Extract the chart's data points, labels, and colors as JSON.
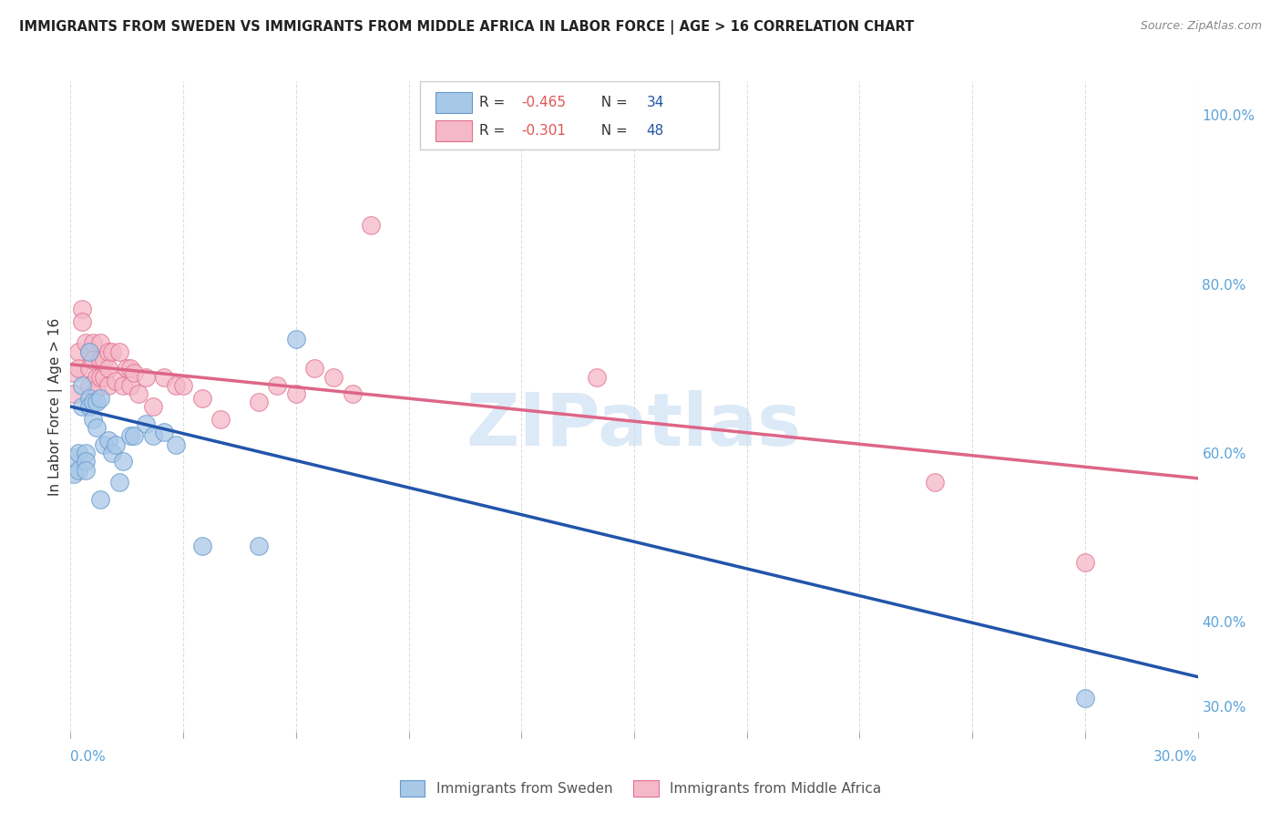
{
  "title": "IMMIGRANTS FROM SWEDEN VS IMMIGRANTS FROM MIDDLE AFRICA IN LABOR FORCE | AGE > 16 CORRELATION CHART",
  "source": "Source: ZipAtlas.com",
  "ylabel": "In Labor Force | Age > 16",
  "xmin": 0.0,
  "xmax": 0.3,
  "ymin": 0.27,
  "ymax": 1.04,
  "right_yticks": [
    0.3,
    0.4,
    0.6,
    0.8,
    1.0
  ],
  "right_yticklabels": [
    "30.0%",
    "40.0%",
    "60.0%",
    "80.0%",
    "100.0%"
  ],
  "sweden_color": "#A8C8E8",
  "sweden_edge": "#6699CC",
  "middle_africa_color": "#F5B8C8",
  "middle_africa_edge": "#E07090",
  "sweden_line_color": "#2255AA",
  "middle_africa_line_color": "#DD6688",
  "sweden_R": -0.465,
  "sweden_N": 34,
  "middle_africa_R": -0.301,
  "middle_africa_N": 48,
  "sweden_scatter_x": [
    0.001,
    0.001,
    0.002,
    0.002,
    0.003,
    0.003,
    0.004,
    0.004,
    0.004,
    0.005,
    0.005,
    0.005,
    0.006,
    0.006,
    0.007,
    0.007,
    0.008,
    0.008,
    0.009,
    0.01,
    0.011,
    0.012,
    0.013,
    0.014,
    0.016,
    0.017,
    0.02,
    0.022,
    0.025,
    0.028,
    0.035,
    0.05,
    0.06,
    0.27
  ],
  "sweden_scatter_y": [
    0.595,
    0.575,
    0.6,
    0.58,
    0.68,
    0.655,
    0.6,
    0.59,
    0.58,
    0.72,
    0.665,
    0.655,
    0.66,
    0.64,
    0.66,
    0.63,
    0.665,
    0.545,
    0.61,
    0.615,
    0.6,
    0.61,
    0.565,
    0.59,
    0.62,
    0.62,
    0.635,
    0.62,
    0.625,
    0.61,
    0.49,
    0.49,
    0.735,
    0.31
  ],
  "middle_africa_scatter_x": [
    0.001,
    0.001,
    0.002,
    0.002,
    0.003,
    0.003,
    0.004,
    0.005,
    0.005,
    0.005,
    0.006,
    0.006,
    0.007,
    0.007,
    0.008,
    0.008,
    0.008,
    0.009,
    0.009,
    0.01,
    0.01,
    0.01,
    0.011,
    0.012,
    0.013,
    0.014,
    0.015,
    0.016,
    0.016,
    0.017,
    0.018,
    0.02,
    0.022,
    0.025,
    0.028,
    0.03,
    0.035,
    0.04,
    0.05,
    0.055,
    0.06,
    0.065,
    0.07,
    0.075,
    0.08,
    0.14,
    0.23,
    0.27
  ],
  "middle_africa_scatter_y": [
    0.695,
    0.67,
    0.72,
    0.7,
    0.77,
    0.755,
    0.73,
    0.72,
    0.7,
    0.68,
    0.73,
    0.71,
    0.69,
    0.675,
    0.73,
    0.71,
    0.69,
    0.71,
    0.69,
    0.72,
    0.7,
    0.68,
    0.72,
    0.685,
    0.72,
    0.68,
    0.7,
    0.7,
    0.68,
    0.695,
    0.67,
    0.69,
    0.655,
    0.69,
    0.68,
    0.68,
    0.665,
    0.64,
    0.66,
    0.68,
    0.67,
    0.7,
    0.69,
    0.67,
    0.87,
    0.69,
    0.565,
    0.47
  ],
  "sweden_trend_x": [
    0.0,
    0.3
  ],
  "sweden_trend_y": [
    0.655,
    0.335
  ],
  "middle_africa_trend_x": [
    0.0,
    0.3
  ],
  "middle_africa_trend_y": [
    0.705,
    0.57
  ],
  "watermark_text": "ZIPatlas",
  "background_color": "#FFFFFF",
  "grid_color": "#DDDDDD"
}
